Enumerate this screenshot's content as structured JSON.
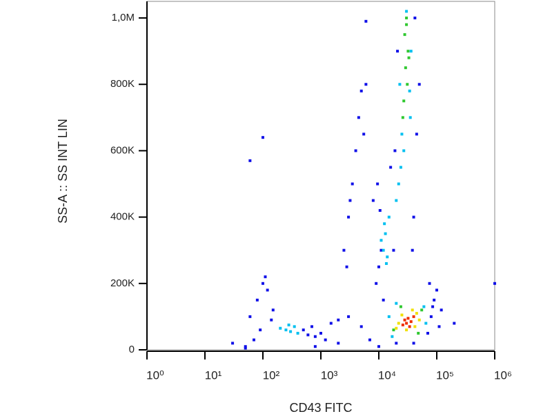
{
  "chart_data": {
    "type": "scatter",
    "x_label": "CD43 FITC",
    "y_label": "SS-A :: SS INT LIN",
    "xscale": "log",
    "xlim": [
      1,
      1000000
    ],
    "xticks": [
      {
        "value": 1,
        "label": "10⁰"
      },
      {
        "value": 10,
        "label": "10¹"
      },
      {
        "value": 100,
        "label": "10²"
      },
      {
        "value": 1000,
        "label": "10³"
      },
      {
        "value": 10000,
        "label": "10⁴"
      },
      {
        "value": 100000,
        "label": "10⁵"
      },
      {
        "value": 1000000,
        "label": "10⁶"
      }
    ],
    "ylim": [
      0,
      1050000
    ],
    "yticks": [
      0,
      {
        "value": 200000,
        "label": "200K"
      },
      {
        "value": 400000,
        "label": "400K"
      },
      {
        "value": 600000,
        "label": "600K"
      },
      {
        "value": 800000,
        "label": "800K"
      },
      {
        "value": 1000000,
        "label": "1,0M"
      }
    ],
    "series": [
      {
        "color": "#1010e8",
        "x": [
          80,
          120,
          150,
          100,
          60,
          90,
          110,
          140,
          70,
          50,
          500,
          700,
          1000,
          1500,
          2000,
          3000,
          5000,
          800,
          1200,
          600,
          2500,
          3000,
          3500,
          4000,
          4500,
          2800,
          3200,
          6000,
          5500,
          9000,
          10000,
          11000,
          8000,
          9500,
          12000,
          10500,
          18000,
          19000,
          21000,
          40000,
          45000,
          50000,
          42000,
          38000,
          16000,
          70000,
          80000,
          90000,
          100000,
          120000,
          75000,
          110000,
          85000,
          50,
          30,
          800,
          2000,
          10000,
          7000,
          20000,
          40000,
          200000,
          100,
          60,
          6000,
          5000,
          1000000
        ],
        "values": [
          150000,
          180000,
          120000,
          200000,
          100000,
          60000,
          220000,
          90000,
          30000,
          10000,
          60000,
          70000,
          50000,
          80000,
          90000,
          100000,
          70000,
          40000,
          30000,
          45000,
          300000,
          400000,
          500000,
          600000,
          700000,
          250000,
          450000,
          800000,
          650000,
          200000,
          250000,
          300000,
          450000,
          500000,
          150000,
          420000,
          300000,
          600000,
          900000,
          400000,
          650000,
          800000,
          1000000,
          300000,
          550000,
          50000,
          100000,
          150000,
          180000,
          120000,
          200000,
          70000,
          130000,
          5000,
          20000,
          10000,
          20000,
          10000,
          30000,
          20000,
          20000,
          80000,
          640000,
          570000,
          990000,
          780000,
          200000
        ]
      },
      {
        "color": "#00c0f0",
        "x": [
          25000,
          27000,
          24000,
          35000,
          22000,
          30000,
          36000,
          20000,
          23000,
          34000,
          12000,
          13000,
          14000,
          11000,
          12500,
          15000,
          13500,
          250,
          300,
          350,
          200,
          400,
          280,
          15000,
          60000,
          17000,
          65000,
          20000
        ],
        "values": [
          650000,
          600000,
          550000,
          700000,
          500000,
          1020000,
          900000,
          450000,
          800000,
          780000,
          300000,
          350000,
          280000,
          330000,
          380000,
          400000,
          260000,
          60000,
          55000,
          70000,
          65000,
          50000,
          75000,
          100000,
          130000,
          40000,
          80000,
          140000
        ]
      },
      {
        "color": "#30c830",
        "x": [
          30000,
          28000,
          32000,
          29000,
          31000,
          27000,
          30000,
          33000,
          26000,
          18000,
          55000,
          24000,
          48000
        ],
        "values": [
          1000000,
          950000,
          900000,
          850000,
          800000,
          750000,
          980000,
          880000,
          700000,
          60000,
          120000,
          130000,
          50000
        ]
      },
      {
        "color": "#f0e000",
        "x": [
          22000,
          45000,
          38000,
          25000,
          50000,
          30000,
          42000,
          20000
        ],
        "values": [
          80000,
          110000,
          120000,
          105000,
          90000,
          60000,
          70000,
          65000
        ]
      },
      {
        "color": "#f03000",
        "x": [
          28000,
          32000,
          36000,
          30000,
          40000,
          26000,
          34000
        ],
        "values": [
          90000,
          95000,
          85000,
          80000,
          100000,
          75000,
          70000
        ]
      }
    ]
  }
}
